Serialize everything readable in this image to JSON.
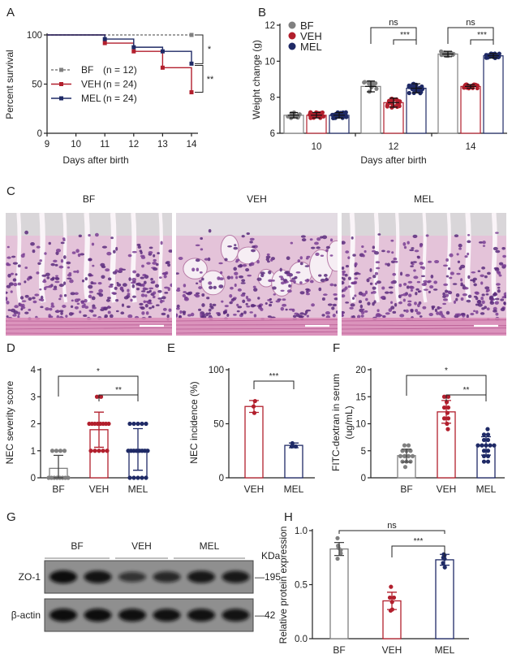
{
  "colors": {
    "BF": "#808080",
    "VEH": "#b21f2d",
    "MEL": "#1f2a66",
    "axis": "#222222"
  },
  "panel_labels": [
    "A",
    "B",
    "C",
    "D",
    "E",
    "F",
    "G",
    "H"
  ],
  "histology": {
    "titles": [
      "BF",
      "VEH",
      "MEL"
    ]
  },
  "western_blot": {
    "groups": [
      "BF",
      "VEH",
      "MEL"
    ],
    "unit_label": "KDa",
    "rows": [
      {
        "protein": "ZO-1",
        "marker": "195",
        "band_intensity": [
          1.0,
          0.92,
          0.55,
          0.68,
          0.88,
          0.86
        ]
      },
      {
        "protein": "β-actin",
        "marker": "42",
        "band_intensity": [
          1.0,
          1.0,
          0.97,
          0.95,
          0.95,
          0.93
        ]
      }
    ]
  },
  "chart_data": [
    {
      "panel": "A",
      "type": "line",
      "xlabel": "Days after birth",
      "ylabel": "Percent survival",
      "xlim": [
        9,
        14
      ],
      "ylim": [
        0,
        100
      ],
      "xticks": [
        "9",
        "10",
        "11",
        "12",
        "13",
        "14"
      ],
      "yticks": [
        "0",
        "50",
        "100"
      ],
      "series": [
        {
          "name": "BF",
          "n_label": "(n = 12)",
          "group": "BF",
          "style": "dashed",
          "x": [
            9,
            11,
            12,
            13,
            14
          ],
          "y": [
            100,
            100,
            100,
            100,
            100
          ]
        },
        {
          "name": "VEH",
          "n_label": "(n = 24)",
          "group": "VEH",
          "style": "solid",
          "x": [
            9,
            11,
            12,
            13,
            14
          ],
          "y": [
            100,
            91.7,
            83.3,
            66.7,
            41.7
          ]
        },
        {
          "name": "MEL",
          "n_label": "(n = 24)",
          "group": "MEL",
          "style": "solid",
          "x": [
            9,
            11,
            12,
            13,
            14
          ],
          "y": [
            100,
            95.8,
            87.5,
            83.3,
            70.8
          ]
        }
      ],
      "annotations": [
        {
          "between": [
            "BF",
            "MEL"
          ],
          "label": "*"
        },
        {
          "between": [
            "MEL",
            "VEH"
          ],
          "label": "**"
        }
      ]
    },
    {
      "panel": "B",
      "type": "bar",
      "xlabel": "Days after birth",
      "ylabel": "Weight change (g)",
      "categories": [
        "10",
        "12",
        "14"
      ],
      "ylim": [
        6,
        12
      ],
      "yticks": [
        "6",
        "8",
        "10",
        "12"
      ],
      "legend": "top-left",
      "series": [
        {
          "name": "BF",
          "values": [
            7.0,
            8.6,
            10.4
          ],
          "sd": [
            0.15,
            0.3,
            0.15
          ],
          "n": 12
        },
        {
          "name": "VEH",
          "values": [
            7.0,
            7.7,
            8.6
          ],
          "sd": [
            0.15,
            0.25,
            0.1
          ],
          "n": 24
        },
        {
          "name": "MEL",
          "values": [
            7.0,
            8.5,
            10.3
          ],
          "sd": [
            0.15,
            0.25,
            0.12
          ],
          "n": 24
        }
      ],
      "annotations": [
        {
          "category": "12",
          "between": [
            "BF",
            "MEL"
          ],
          "label": "ns"
        },
        {
          "category": "12",
          "between": [
            "VEH",
            "MEL"
          ],
          "label": "***"
        },
        {
          "category": "14",
          "between": [
            "BF",
            "MEL"
          ],
          "label": "ns"
        },
        {
          "category": "14",
          "between": [
            "VEH",
            "MEL"
          ],
          "label": "***"
        }
      ]
    },
    {
      "panel": "D",
      "type": "bar",
      "ylabel": "NEC severity score",
      "categories": [
        "BF",
        "VEH",
        "MEL"
      ],
      "ylim": [
        0,
        4
      ],
      "yticks": [
        "0",
        "1",
        "2",
        "3",
        "4"
      ],
      "values": [
        0.35,
        1.78,
        1.05
      ],
      "sd": [
        0.48,
        0.65,
        0.77
      ],
      "points": [
        [
          1,
          1,
          1,
          1,
          0,
          0,
          0,
          0,
          0,
          0,
          0,
          0
        ],
        [
          3,
          3,
          2,
          2,
          2,
          2,
          2,
          2,
          2,
          2,
          1,
          1,
          1,
          1,
          1
        ],
        [
          2,
          2,
          2,
          2,
          2,
          1,
          1,
          1,
          1,
          1,
          1,
          1,
          1,
          0,
          0,
          0,
          0,
          0
        ]
      ],
      "annotations": [
        {
          "between": [
            "BF",
            "MEL"
          ],
          "label": "*"
        },
        {
          "between": [
            "VEH",
            "MEL"
          ],
          "label": "**"
        }
      ]
    },
    {
      "panel": "E",
      "type": "bar",
      "ylabel": "NEC incidence (%)",
      "categories": [
        "VEH",
        "MEL"
      ],
      "ylim": [
        0,
        100
      ],
      "yticks": [
        "0",
        "50",
        "100"
      ],
      "values": [
        66,
        30
      ],
      "sd": [
        5.5,
        2.2
      ],
      "points": [
        [
          71,
          66,
          60
        ],
        [
          32,
          29,
          29
        ]
      ],
      "annotations": [
        {
          "between": [
            "VEH",
            "MEL"
          ],
          "label": "***"
        }
      ]
    },
    {
      "panel": "F",
      "type": "bar",
      "ylabel": "FITC-dextran in serum",
      "ylabel2": "(ug/mL)",
      "categories": [
        "BF",
        "VEH",
        "MEL"
      ],
      "ylim": [
        0,
        20
      ],
      "yticks": [
        "0",
        "5",
        "10",
        "15",
        "20"
      ],
      "values": [
        4.1,
        12.2,
        5.9
      ],
      "sd": [
        1.2,
        2.1,
        1.7
      ],
      "points": [
        [
          6,
          6,
          5,
          5,
          5,
          4,
          4,
          4,
          4,
          3,
          3,
          3,
          2
        ],
        [
          15,
          15,
          14,
          13,
          13,
          12,
          11,
          11,
          10,
          9
        ],
        [
          9,
          8,
          8,
          7,
          7,
          6,
          6,
          6,
          6,
          6,
          5,
          5,
          4,
          4,
          3,
          3
        ]
      ],
      "annotations": [
        {
          "between": [
            "BF",
            "MEL"
          ],
          "label": "*"
        },
        {
          "between": [
            "VEH",
            "MEL"
          ],
          "label": "**"
        }
      ]
    },
    {
      "panel": "H",
      "type": "bar",
      "ylabel": "Relative protein expression",
      "categories": [
        "BF",
        "VEH",
        "MEL"
      ],
      "ylim": [
        0,
        1.0
      ],
      "yticks": [
        "0.0",
        "0.5",
        "1.0"
      ],
      "values": [
        0.83,
        0.35,
        0.73
      ],
      "sd": [
        0.06,
        0.08,
        0.05
      ],
      "points": [
        [
          0.93,
          0.86,
          0.84,
          0.82,
          0.79,
          0.74
        ],
        [
          0.48,
          0.38,
          0.38,
          0.34,
          0.27,
          0.26
        ],
        [
          0.78,
          0.77,
          0.75,
          0.74,
          0.7,
          0.66
        ]
      ],
      "annotations": [
        {
          "between": [
            "BF",
            "MEL"
          ],
          "label": "ns"
        },
        {
          "between": [
            "VEH",
            "MEL"
          ],
          "label": "***"
        }
      ]
    }
  ]
}
